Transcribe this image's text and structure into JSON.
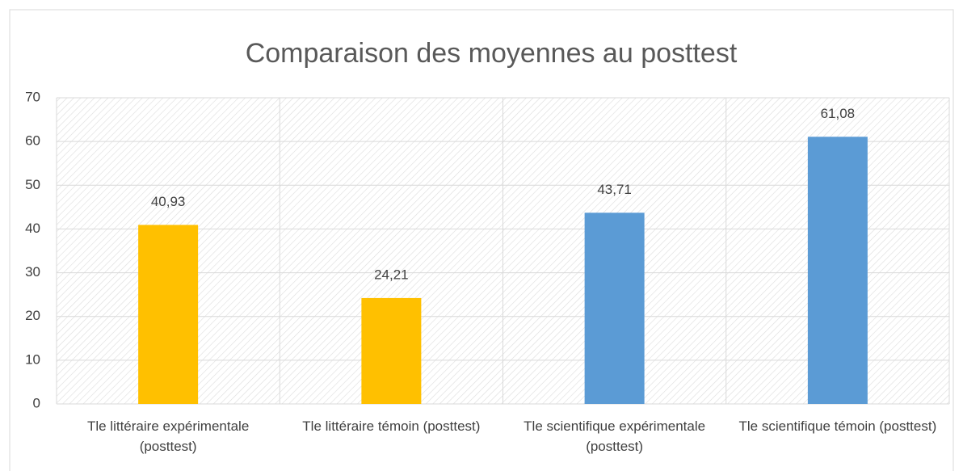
{
  "chart_data": {
    "type": "bar",
    "title": "Comparaison des moyennes au posttest",
    "categories": [
      "Tle littéraire expérimentale (posttest)",
      "Tle littéraire témoin (posttest)",
      "Tle scientifique expérimentale (posttest)",
      "Tle scientifique témoin (posttest)"
    ],
    "values": [
      40.93,
      24.21,
      43.71,
      61.08
    ],
    "value_labels": [
      "40,93",
      "24,21",
      "43,71",
      "61,08"
    ],
    "colors": [
      "#ffc000",
      "#ffc000",
      "#5b9bd5",
      "#5b9bd5"
    ],
    "ylim": [
      0,
      70
    ],
    "yticks": [
      0,
      10,
      20,
      30,
      40,
      50,
      60,
      70
    ],
    "grid": true
  }
}
